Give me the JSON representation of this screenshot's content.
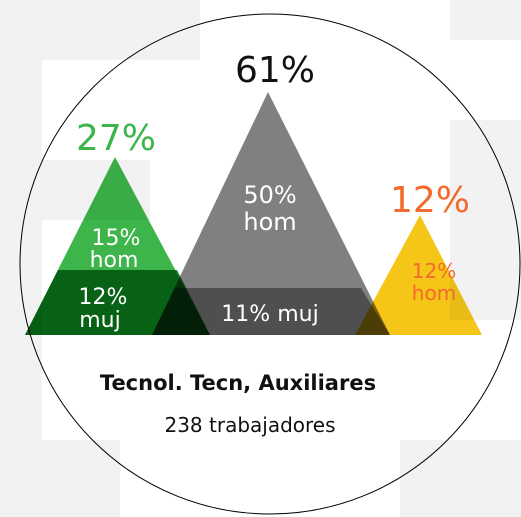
{
  "total": "61%",
  "center": {
    "hom_value": "50%",
    "hom_label": "hom",
    "muj": "11% muj"
  },
  "left": {
    "total": "27%",
    "hom_value": "15%",
    "hom_label": "hom",
    "muj_value": "12%",
    "muj_label": "muj"
  },
  "right": {
    "total": "12%",
    "hom_value": "12%",
    "hom_label": "hom"
  },
  "title": "Tecnol. Tecn, Auxiliares",
  "subtitle": "238 trabajadores"
}
